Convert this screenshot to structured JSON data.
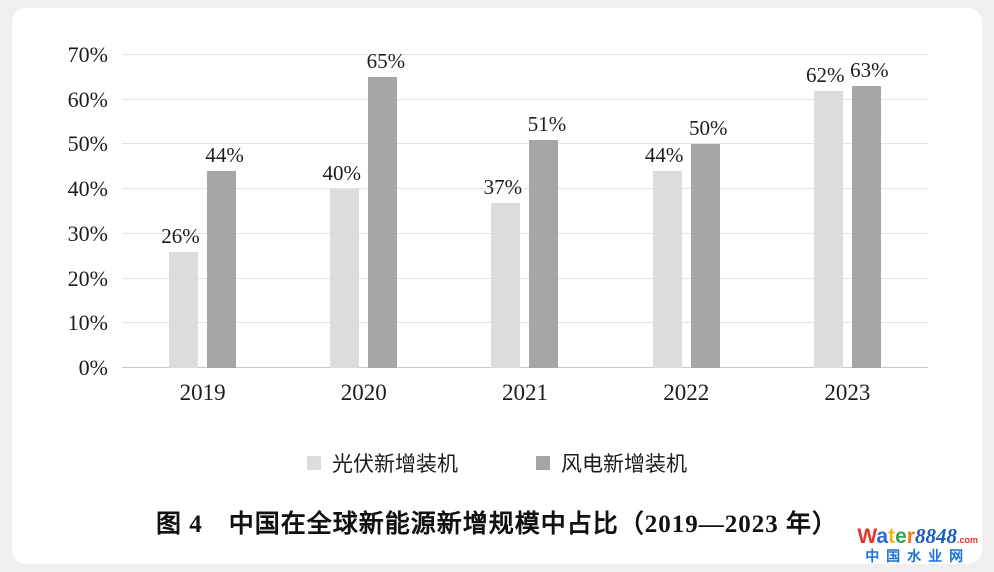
{
  "page": {
    "background": "#efefef",
    "card_background": "#ffffff"
  },
  "chart_data": {
    "type": "bar",
    "title": "图 4　中国在全球新能源新增规模中占比（2019—2023 年）",
    "categories": [
      "2019",
      "2020",
      "2021",
      "2022",
      "2023"
    ],
    "series": [
      {
        "name": "光伏新增装机",
        "color": "#dcdcdc",
        "values": [
          26,
          40,
          37,
          44,
          62
        ]
      },
      {
        "name": "风电新增装机",
        "color": "#a6a6a6",
        "values": [
          44,
          65,
          51,
          50,
          63
        ]
      }
    ],
    "xlabel": "",
    "ylabel": "",
    "ylim": [
      0,
      70
    ],
    "ytick_step": 10,
    "ytick_suffix": "%",
    "grid": true,
    "gridline_color": "#e3e3e3",
    "baseline_color": "#c9c9c9",
    "legend_position": "bottom",
    "data_labels": true,
    "data_label_suffix": "%"
  },
  "watermark": {
    "brand_letters": [
      {
        "ch": "W",
        "color": "#e4342b"
      },
      {
        "ch": "a",
        "color": "#2a6bd8"
      },
      {
        "ch": "t",
        "color": "#f4b21a"
      },
      {
        "ch": "e",
        "color": "#3aa357"
      },
      {
        "ch": "r",
        "color": "#f07c1e"
      }
    ],
    "number": "8848",
    "number_color": "#1a5bc4",
    "tld": ".com",
    "tld_color": "#e4342b",
    "subtitle": "中国水业网",
    "subtitle_color": "#1a6fd4"
  }
}
